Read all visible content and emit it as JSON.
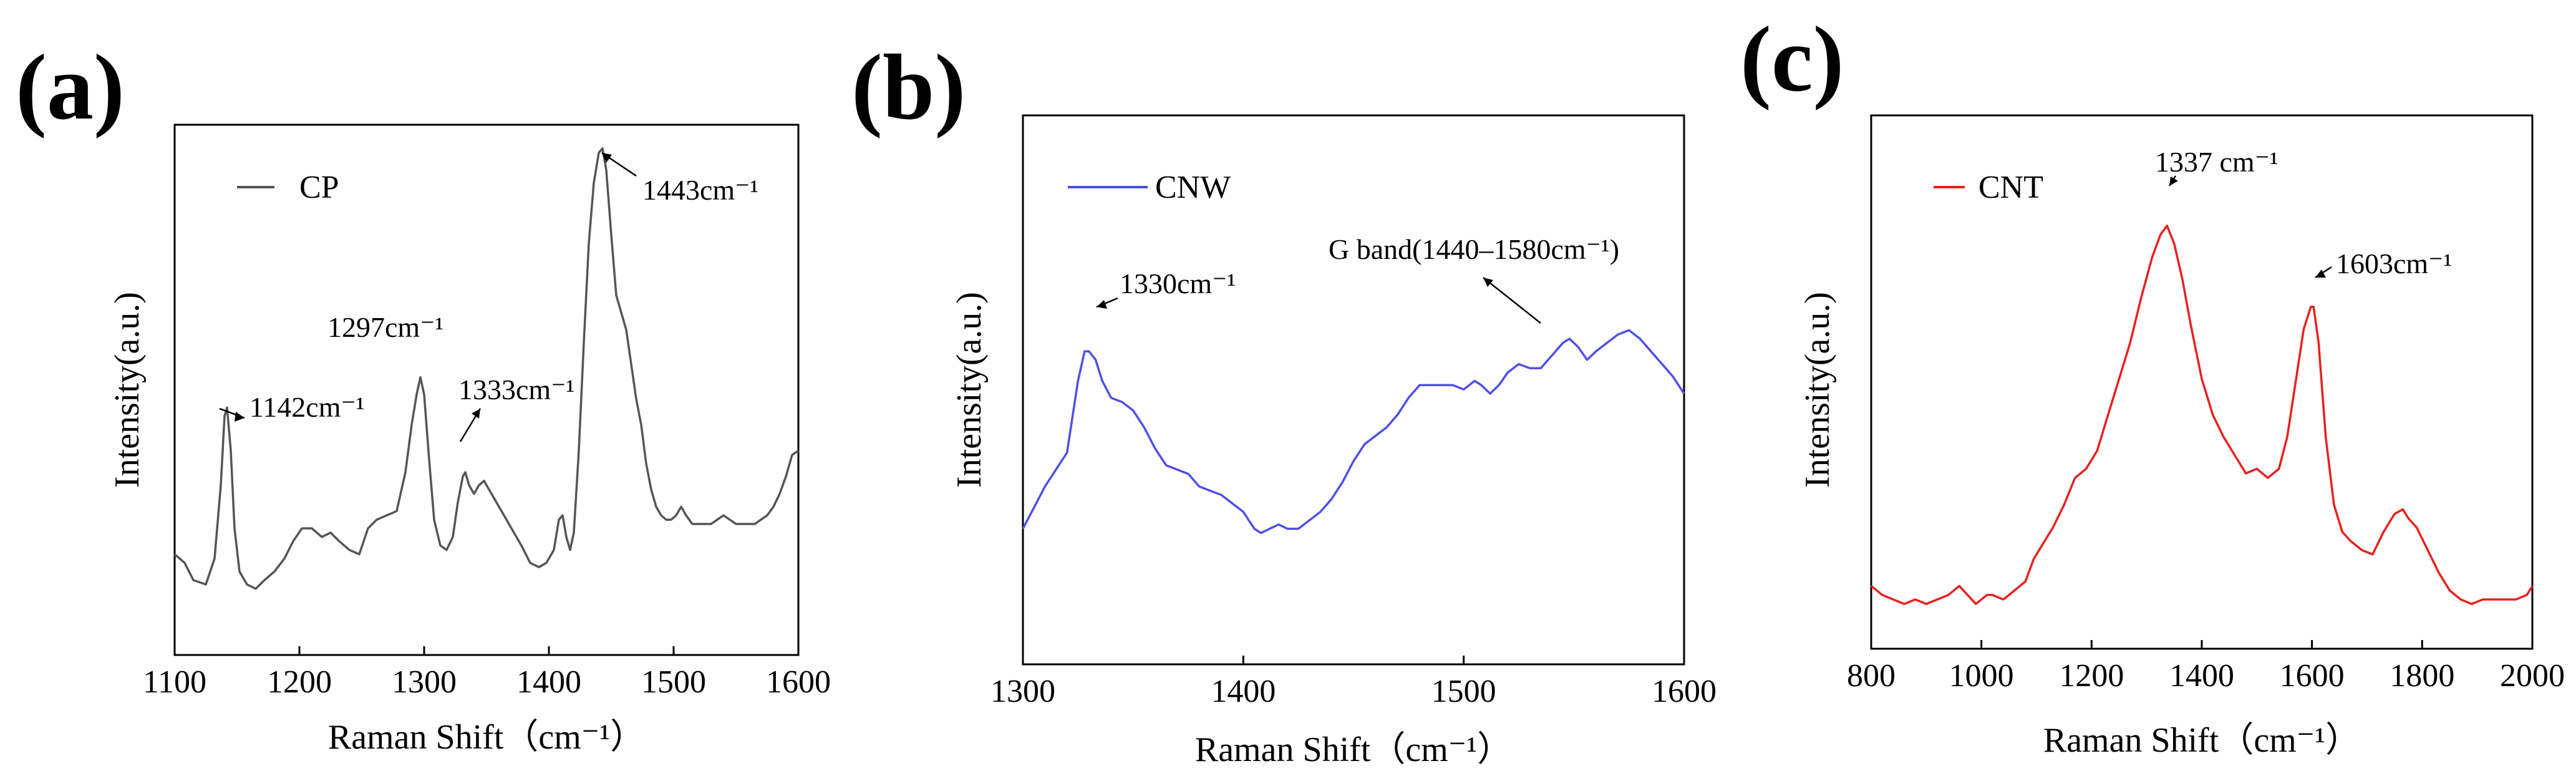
{
  "chart_data": [
    {
      "type": "line",
      "panel_label": "(a)",
      "xlabel": "Raman Shift（cm⁻¹）",
      "ylabel": "Intensity(a.u.)",
      "xlim": [
        1100,
        1600
      ],
      "ylim": [
        0,
        100
      ],
      "xticks": [
        1100,
        1200,
        1300,
        1400,
        1500,
        1600
      ],
      "x_tick_labels": [
        "1100",
        "1200",
        "1300",
        "1400",
        "1500",
        "1600"
      ],
      "y_ticks_shown": false,
      "legend": {
        "position": "top-left"
      },
      "series": [
        {
          "name": "CP",
          "color": "#555555",
          "x": [
            1100,
            1108,
            1115,
            1125,
            1132,
            1137,
            1140,
            1142,
            1145,
            1148,
            1152,
            1158,
            1165,
            1172,
            1180,
            1188,
            1195,
            1202,
            1210,
            1218,
            1225,
            1232,
            1240,
            1248,
            1255,
            1262,
            1270,
            1278,
            1285,
            1290,
            1294,
            1297,
            1300,
            1304,
            1308,
            1313,
            1318,
            1323,
            1327,
            1331,
            1333,
            1336,
            1340,
            1344,
            1348,
            1352,
            1356,
            1360,
            1366,
            1372,
            1378,
            1385,
            1392,
            1398,
            1404,
            1408,
            1411,
            1414,
            1417,
            1420,
            1424,
            1428,
            1432,
            1436,
            1440,
            1443,
            1446,
            1450,
            1454,
            1458,
            1462,
            1466,
            1470,
            1474,
            1478,
            1482,
            1486,
            1490,
            1494,
            1498,
            1502,
            1506,
            1510,
            1515,
            1520,
            1525,
            1530,
            1535,
            1540,
            1545,
            1550,
            1555,
            1560,
            1565,
            1570,
            1575,
            1580,
            1585,
            1590,
            1595,
            1600
          ],
          "values": [
            6,
            4,
            0,
            -1,
            5,
            22,
            38,
            40,
            30,
            12,
            2,
            -1,
            -2,
            0,
            2,
            5,
            9,
            12,
            12,
            10,
            11,
            9,
            7,
            6,
            12,
            14,
            15,
            16,
            25,
            36,
            43,
            47,
            43,
            28,
            14,
            8,
            7,
            10,
            18,
            24,
            25,
            22,
            20,
            22,
            23,
            21,
            19,
            17,
            14,
            11,
            8,
            4,
            3,
            4,
            7,
            14,
            15,
            10,
            7,
            11,
            30,
            55,
            78,
            92,
            99,
            100,
            95,
            80,
            66,
            62,
            58,
            50,
            42,
            36,
            27,
            21,
            17,
            15,
            14,
            14,
            15,
            17,
            15,
            13,
            13,
            13,
            13,
            14,
            15,
            14,
            13,
            13,
            13,
            13,
            14,
            15,
            17,
            20,
            24,
            29,
            30
          ]
        }
      ],
      "annotations": [
        {
          "text": "1142cm⁻¹",
          "x": 1142,
          "y": 40
        },
        {
          "text": "1297cm⁻¹",
          "x": 1297,
          "y": 47
        },
        {
          "text": "1333cm⁻¹",
          "x": 1333,
          "y": 25
        },
        {
          "text": "1443cm⁻¹",
          "x": 1443,
          "y": 100
        }
      ]
    },
    {
      "type": "line",
      "panel_label": "(b)",
      "xlabel": "Raman Shift（cm⁻¹）",
      "ylabel": "Intensity(a.u.)",
      "xlim": [
        1300,
        1600
      ],
      "ylim": [
        0,
        100
      ],
      "xticks": [
        1300,
        1400,
        1500,
        1600
      ],
      "x_tick_labels": [
        "1300",
        "1400",
        "1500",
        "1600"
      ],
      "y_ticks_shown": false,
      "legend": {
        "position": "top-left"
      },
      "series": [
        {
          "name": "CNW",
          "color": "#4f4fe8",
          "x": [
            1300,
            1305,
            1310,
            1315,
            1320,
            1325,
            1328,
            1330,
            1333,
            1336,
            1340,
            1345,
            1350,
            1355,
            1360,
            1365,
            1370,
            1375,
            1380,
            1385,
            1390,
            1395,
            1400,
            1405,
            1408,
            1412,
            1416,
            1420,
            1425,
            1430,
            1435,
            1440,
            1445,
            1450,
            1455,
            1460,
            1465,
            1470,
            1475,
            1480,
            1485,
            1490,
            1495,
            1500,
            1505,
            1508,
            1512,
            1516,
            1520,
            1525,
            1530,
            1535,
            1540,
            1545,
            1548,
            1552,
            1556,
            1560,
            1565,
            1570,
            1575,
            1580,
            1585,
            1590,
            1595,
            1600
          ],
          "values": [
            20,
            25,
            30,
            34,
            38,
            55,
            62,
            62,
            60,
            55,
            51,
            50,
            48,
            44,
            39,
            35,
            34,
            33,
            30,
            29,
            28,
            26,
            24,
            20,
            19,
            20,
            21,
            20,
            20,
            22,
            24,
            27,
            31,
            36,
            40,
            42,
            44,
            47,
            51,
            54,
            54,
            54,
            54,
            53,
            55,
            54,
            52,
            54,
            57,
            59,
            58,
            58,
            61,
            64,
            65,
            63,
            60,
            62,
            64,
            66,
            67,
            65,
            62,
            59,
            56,
            52
          ]
        }
      ],
      "annotations": [
        {
          "text": "1330cm⁻¹",
          "x": 1330,
          "y": 62
        },
        {
          "text": "G band(1440–1580cm⁻¹)",
          "x": 1535,
          "y": 58
        }
      ]
    },
    {
      "type": "line",
      "panel_label": "(c)",
      "xlabel": "Raman Shift（cm⁻¹）",
      "ylabel": "Intensity(a.u.)",
      "xlim": [
        800,
        2000
      ],
      "ylim": [
        0,
        100
      ],
      "xticks": [
        800,
        1000,
        1200,
        1400,
        1600,
        1800,
        2000
      ],
      "x_tick_labels": [
        "800",
        "1000",
        "1200",
        "1400",
        "1600",
        "1800",
        "2000"
      ],
      "y_ticks_shown": false,
      "legend": {
        "position": "top-left"
      },
      "series": [
        {
          "name": "CNT",
          "color": "#e8201e",
          "x": [
            800,
            820,
            840,
            860,
            880,
            900,
            920,
            940,
            960,
            975,
            990,
            1010,
            1020,
            1040,
            1060,
            1080,
            1095,
            1110,
            1130,
            1150,
            1170,
            1190,
            1210,
            1230,
            1250,
            1270,
            1290,
            1310,
            1325,
            1337,
            1350,
            1365,
            1380,
            1400,
            1420,
            1440,
            1460,
            1480,
            1500,
            1520,
            1540,
            1555,
            1570,
            1585,
            1598,
            1603,
            1612,
            1625,
            1640,
            1655,
            1670,
            1690,
            1710,
            1730,
            1750,
            1765,
            1775,
            1790,
            1810,
            1830,
            1850,
            1870,
            1890,
            1910,
            1930,
            1950,
            1970,
            1990,
            2000
          ],
          "values": [
            12,
            10,
            9,
            8,
            9,
            8,
            9,
            10,
            12,
            10,
            8,
            10,
            10,
            9,
            11,
            13,
            18,
            21,
            25,
            30,
            36,
            38,
            42,
            50,
            58,
            66,
            76,
            85,
            90,
            92,
            88,
            80,
            70,
            58,
            50,
            45,
            41,
            37,
            38,
            36,
            38,
            45,
            57,
            69,
            74,
            74,
            66,
            45,
            30,
            24,
            22,
            20,
            19,
            24,
            28,
            29,
            27,
            25,
            20,
            15,
            11,
            9,
            8,
            9,
            9,
            9,
            9,
            10,
            12
          ]
        }
      ],
      "annotations": [
        {
          "text": "1337 cm⁻¹",
          "x": 1337,
          "y": 92
        },
        {
          "text": "1603cm⁻¹",
          "x": 1603,
          "y": 74
        }
      ]
    }
  ]
}
